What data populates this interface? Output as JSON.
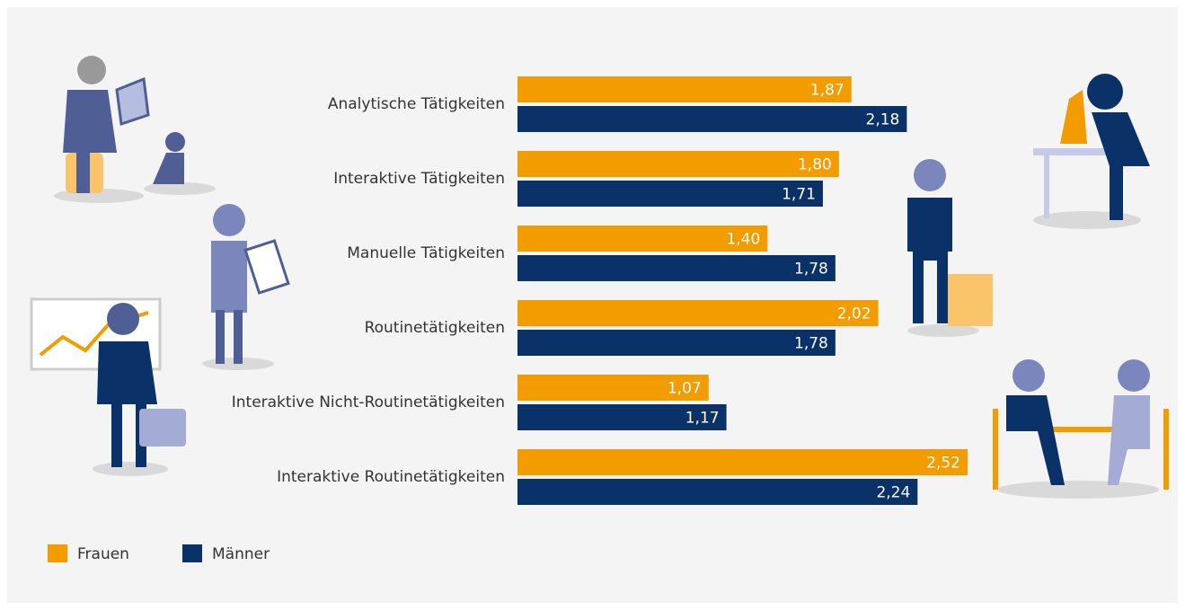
{
  "chart_data": {
    "type": "bar",
    "orientation": "horizontal",
    "categories": [
      "Analytische Tätigkeiten",
      "Interaktive Tätigkeiten",
      "Manuelle Tätigkeiten",
      "Routinetätigkeiten",
      "Interaktive Nicht-Routinetätigkeiten",
      "Interaktive Routinetätigkeiten"
    ],
    "series": [
      {
        "name": "Frauen",
        "color": "#f39c00",
        "values": [
          1.87,
          1.8,
          1.4,
          2.02,
          1.07,
          2.52
        ],
        "value_labels": [
          "1,87",
          "1,80",
          "1,40",
          "2,02",
          "1,07",
          "2,52"
        ]
      },
      {
        "name": "Männer",
        "color": "#0b3268",
        "values": [
          2.18,
          1.71,
          1.78,
          1.78,
          1.17,
          2.24
        ],
        "value_labels": [
          "2,18",
          "1,71",
          "1,78",
          "1,78",
          "1,17",
          "2,24"
        ]
      }
    ]
  }
}
